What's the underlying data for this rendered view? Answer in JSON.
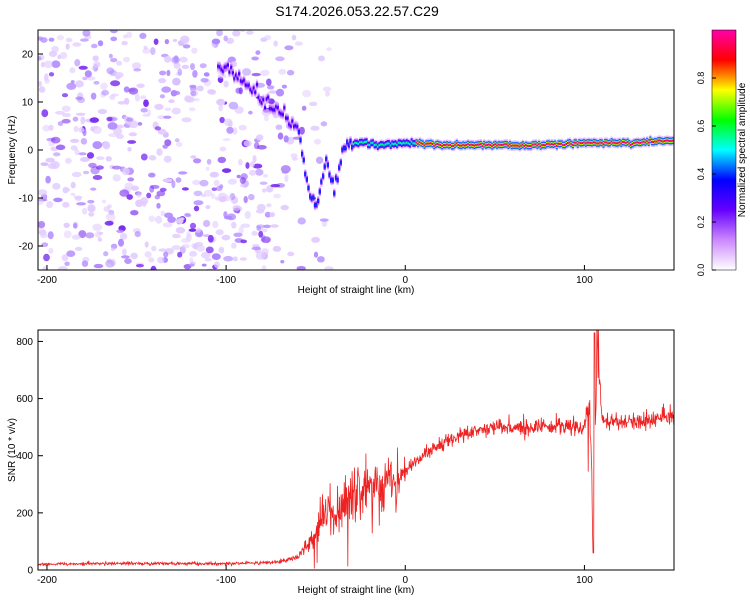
{
  "title": "S174.2026.053.22.57.C29",
  "colors": {
    "snr_line": "#ee2222",
    "axis": "#000000",
    "background": "#ffffff"
  },
  "chart_data": [
    {
      "type": "heatmap",
      "name": "spectrogram",
      "xlabel": "Height of straight line (km)",
      "ylabel": "Frequency (Hz)",
      "xlim": [
        -205,
        150
      ],
      "ylim": [
        -25,
        25
      ],
      "xticks": [
        -200,
        -100,
        0,
        100
      ],
      "yticks": [
        -20,
        -10,
        0,
        10,
        20
      ],
      "colorbar": {
        "label": "Normalized spectral amplitude",
        "range": [
          0,
          1
        ],
        "ticks": [
          "0.0",
          "0.2",
          "0.4",
          "0.6",
          "0.8"
        ],
        "colormap": [
          "#ffffff",
          "#cc88ff",
          "#6600ff",
          "#0000ff",
          "#00ffff",
          "#00ff00",
          "#ffff00",
          "#ff0000",
          "#ff00aa"
        ]
      },
      "signal_track": [
        {
          "x": -100,
          "y": 17
        },
        {
          "x": -90,
          "y": 14
        },
        {
          "x": -80,
          "y": 10
        },
        {
          "x": -70,
          "y": 8
        },
        {
          "x": -60,
          "y": 4
        },
        {
          "x": -55,
          "y": -8
        },
        {
          "x": -50,
          "y": -12
        },
        {
          "x": -45,
          "y": -2
        },
        {
          "x": -40,
          "y": -8
        },
        {
          "x": -35,
          "y": 1
        },
        {
          "x": -25,
          "y": 1.5
        },
        {
          "x": -15,
          "y": 1
        },
        {
          "x": 0,
          "y": 1.5
        },
        {
          "x": 25,
          "y": 1
        },
        {
          "x": 50,
          "y": 1
        },
        {
          "x": 75,
          "y": 1
        },
        {
          "x": 100,
          "y": 1.5
        },
        {
          "x": 125,
          "y": 1.5
        },
        {
          "x": 150,
          "y": 2
        }
      ]
    },
    {
      "type": "line",
      "name": "snr",
      "xlabel": "Height of straight line (km)",
      "ylabel": "SNR (10 * v/v)",
      "xlim": [
        -205,
        150
      ],
      "ylim": [
        0,
        840
      ],
      "xticks": [
        -200,
        -100,
        0,
        100
      ],
      "yticks": [
        0,
        200,
        400,
        600,
        800
      ],
      "series": [
        {
          "name": "SNR",
          "x": [
            -205,
            -180,
            -150,
            -120,
            -100,
            -80,
            -70,
            -60,
            -50,
            -45,
            -40,
            -30,
            -20,
            -10,
            0,
            10,
            20,
            30,
            40,
            50,
            60,
            70,
            80,
            90,
            100,
            103,
            105,
            107,
            110,
            120,
            130,
            140,
            150
          ],
          "y": [
            20,
            22,
            23,
            22,
            22,
            25,
            30,
            45,
            120,
            220,
            170,
            260,
            280,
            310,
            350,
            400,
            440,
            470,
            490,
            500,
            495,
            500,
            505,
            500,
            500,
            600,
            60,
            780,
            520,
            515,
            520,
            530,
            535
          ]
        }
      ]
    }
  ]
}
